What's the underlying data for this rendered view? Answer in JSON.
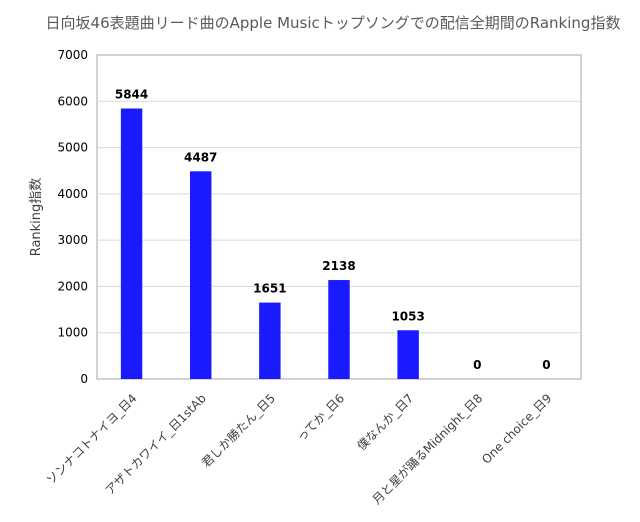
{
  "chart_data": {
    "type": "bar",
    "title": "日向坂46表題曲リード曲のApple Musicトップソングでの配信全期間のRanking指数",
    "xlabel": "",
    "ylabel": "Ranking指数",
    "categories": [
      "ソンナコトナイヨ_日4",
      "アザトカワイイ_日1stAb",
      "君しか勝たん_日5",
      "ってか_日6",
      "僕なんか_日7",
      "月と星が踊るMidnight_日8",
      "One choice_日9"
    ],
    "values": [
      5844,
      4487,
      1651,
      2138,
      1053,
      0,
      0
    ],
    "data_labels": [
      "5844",
      "4487",
      "1651",
      "2138",
      "1053",
      "0",
      "0"
    ],
    "ylim": [
      0,
      7000
    ],
    "yticks": [
      0,
      1000,
      2000,
      3000,
      4000,
      5000,
      6000,
      7000
    ],
    "grid": true,
    "legend": "none",
    "bar_color": "#1a1aff"
  }
}
